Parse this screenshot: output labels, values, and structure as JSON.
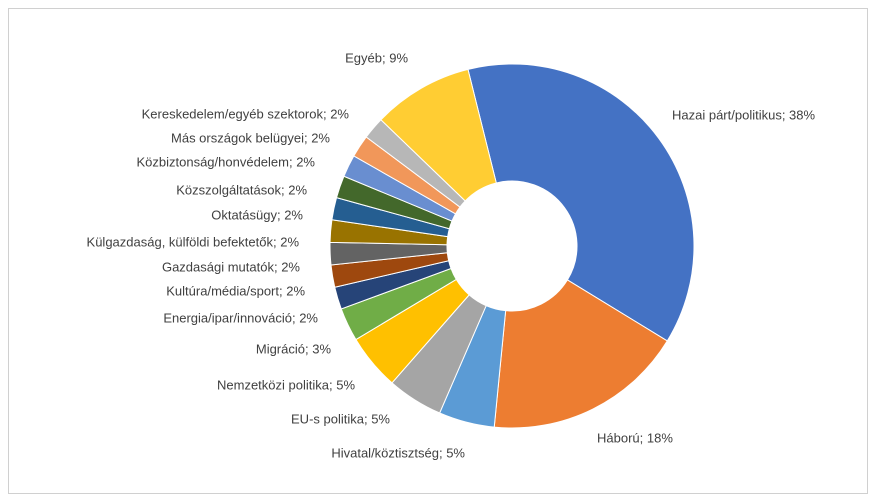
{
  "chart_data": {
    "type": "donut",
    "labels": [
      "Hazai párt/politikus; 38%",
      "Háború; 18%",
      "Hivatal/köztisztség; 5%",
      "EU-s politika; 5%",
      "Nemzetközi politika; 5%",
      "Migráció; 3%",
      "Energia/ipar/innováció; 2%",
      "Kultúra/média/sport; 2%",
      "Gazdasági mutatók; 2%",
      "Külgazdaság, külföldi befektetők; 2%",
      "Oktatásügy; 2%",
      "Közszolgáltatások; 2%",
      "Közbiztonság/honvédelem; 2%",
      "Más országok belügyei; 2%",
      "Kereskedelem/egyéb szektorok; 2%",
      "Egyéb; 9%"
    ],
    "values": [
      38,
      18,
      5,
      5,
      5,
      3,
      2,
      2,
      2,
      2,
      2,
      2,
      2,
      2,
      2,
      9
    ],
    "colors": [
      "#4472c4",
      "#ed7d31",
      "#5b9bd5",
      "#a5a5a5",
      "#ffc000",
      "#70ad47",
      "#264478",
      "#9e480e",
      "#636363",
      "#997300",
      "#255e91",
      "#43682b",
      "#698ed0",
      "#f1975a",
      "#b7b7b7",
      "#ffcd33"
    ]
  }
}
